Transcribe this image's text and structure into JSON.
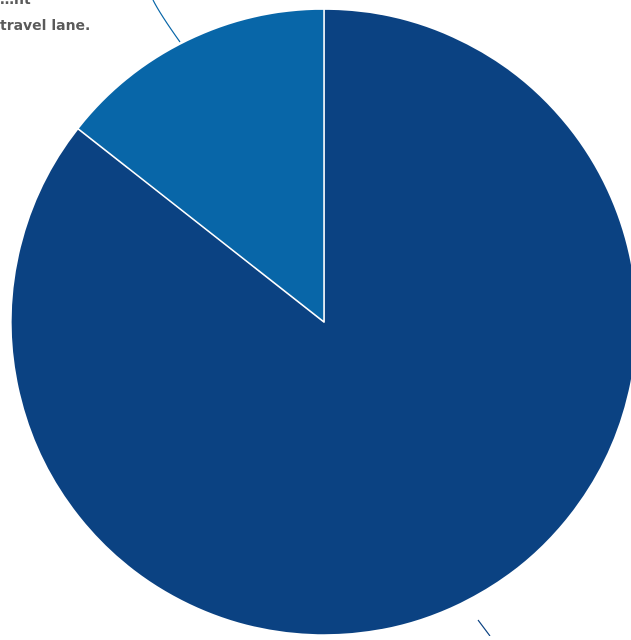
{
  "chart_data": {
    "type": "pie",
    "slices": [
      {
        "label": "",
        "value": 85.6,
        "color": "#0b4282"
      },
      {
        "label": "travel lane.",
        "value": 14.4,
        "color": "#0866a8"
      }
    ],
    "annotation_partial_line": "…ht",
    "start_angle_deg": 0,
    "direction": "clockwise"
  }
}
